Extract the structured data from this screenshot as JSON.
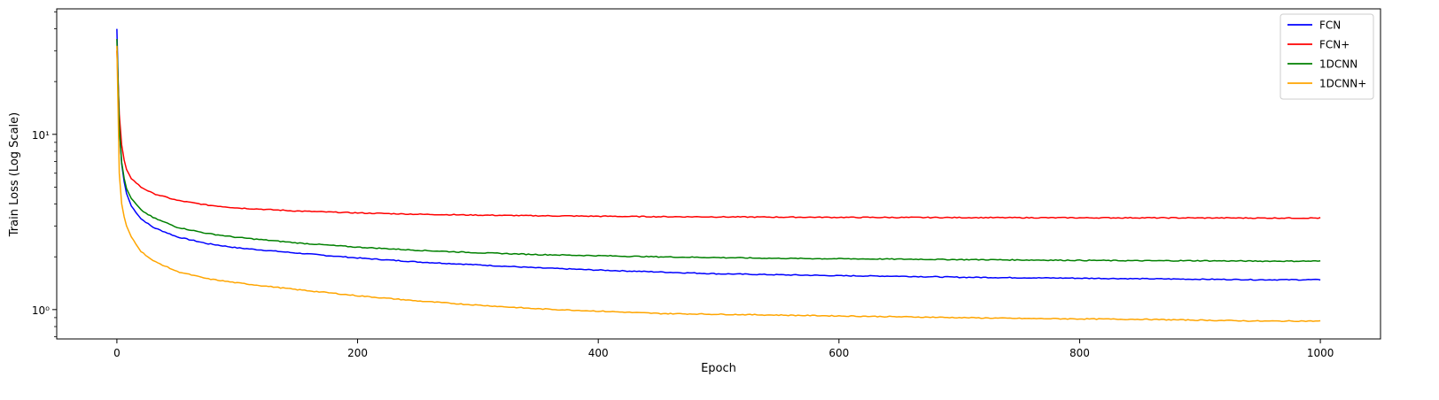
{
  "chart_data": {
    "type": "line",
    "title": "",
    "xlabel": "Epoch",
    "ylabel": "Train Loss (Log Scale)",
    "xlim": [
      -50,
      1050
    ],
    "ylim": [
      0.68,
      52
    ],
    "yscale": "log",
    "grid": false,
    "legend_placement": "top-right",
    "xticks": [
      0,
      200,
      400,
      600,
      800,
      1000
    ],
    "xtick_labels": [
      "0",
      "200",
      "400",
      "600",
      "800",
      "1000"
    ],
    "yticks": [
      1,
      10
    ],
    "ytick_labels": [
      "10⁰",
      "10¹"
    ],
    "x": [
      0,
      1,
      2,
      3,
      5,
      8,
      12,
      20,
      30,
      50,
      75,
      100,
      150,
      200,
      250,
      300,
      350,
      400,
      450,
      500,
      550,
      600,
      650,
      700,
      750,
      800,
      850,
      900,
      950,
      1000
    ],
    "series": [
      {
        "name": "FCN",
        "color": "#0000ff",
        "values": [
          40,
          20,
          11,
          8.0,
          5.8,
          4.6,
          3.9,
          3.3,
          2.95,
          2.6,
          2.38,
          2.25,
          2.1,
          1.97,
          1.87,
          1.8,
          1.73,
          1.68,
          1.64,
          1.6,
          1.58,
          1.56,
          1.55,
          1.53,
          1.52,
          1.51,
          1.5,
          1.49,
          1.48,
          1.48
        ]
      },
      {
        "name": "FCN+",
        "color": "#ff0000",
        "values": [
          30,
          20,
          13,
          10,
          7.6,
          6.3,
          5.6,
          5.0,
          4.6,
          4.2,
          3.95,
          3.8,
          3.65,
          3.56,
          3.5,
          3.46,
          3.43,
          3.41,
          3.39,
          3.38,
          3.37,
          3.36,
          3.355,
          3.35,
          3.345,
          3.34,
          3.34,
          3.335,
          3.33,
          3.33
        ]
      },
      {
        "name": "1DCNN",
        "color": "#008000",
        "values": [
          35,
          18,
          11,
          8.0,
          6.0,
          4.9,
          4.3,
          3.7,
          3.35,
          2.95,
          2.72,
          2.58,
          2.4,
          2.27,
          2.18,
          2.11,
          2.06,
          2.03,
          2.0,
          1.98,
          1.96,
          1.95,
          1.94,
          1.93,
          1.92,
          1.91,
          1.9,
          1.9,
          1.89,
          1.89
        ]
      },
      {
        "name": "1DCNN+",
        "color": "#ffa500",
        "values": [
          32,
          10,
          6.0,
          4.5,
          3.6,
          3.0,
          2.6,
          2.15,
          1.9,
          1.65,
          1.5,
          1.42,
          1.3,
          1.2,
          1.12,
          1.06,
          1.01,
          0.98,
          0.95,
          0.94,
          0.93,
          0.92,
          0.91,
          0.9,
          0.89,
          0.885,
          0.88,
          0.87,
          0.86,
          0.86
        ]
      }
    ]
  }
}
